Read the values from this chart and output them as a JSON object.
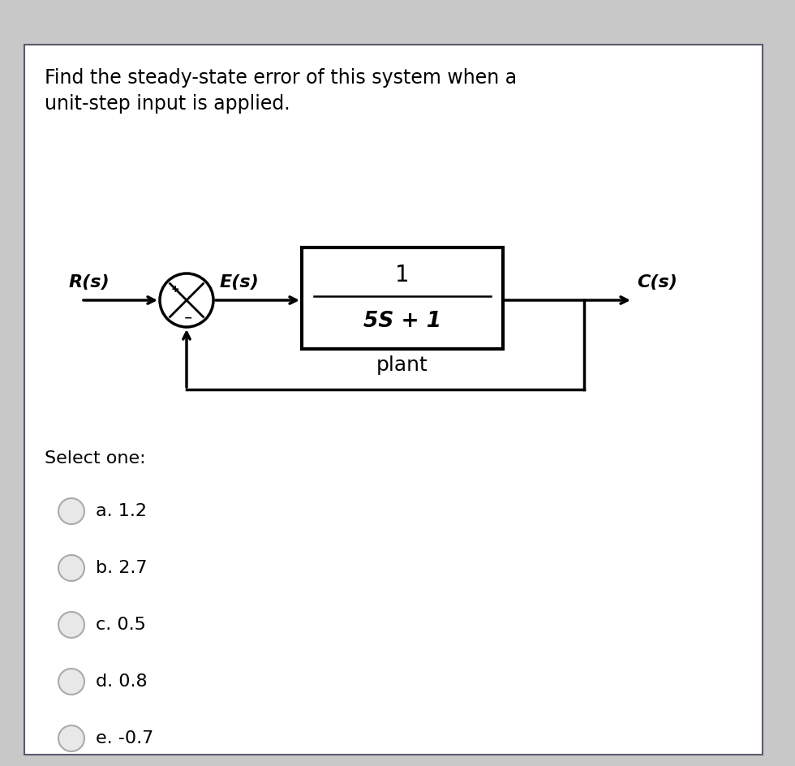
{
  "title_line1": "Find the steady-state error of this system when a",
  "title_line2": "unit-step input is applied.",
  "bg_color": "#ffffff",
  "outer_bg": "#d0d0d0",
  "card_border": "#5a5a6e",
  "text_color": "#000000",
  "select_one_text": "Select one:",
  "options": [
    {
      "label": "a. 1.2"
    },
    {
      "label": "b. 2.7"
    },
    {
      "label": "c. 0.5"
    },
    {
      "label": "d. 0.8"
    },
    {
      "label": "e. -0.7"
    }
  ],
  "R_label": "R(s)",
  "E_label": "E(s)",
  "C_label": "C(s)",
  "tf_numerator": "1",
  "tf_denominator": "5S + 1",
  "tf_label": "plant",
  "circle_color": "#000000",
  "box_color": "#000000",
  "arrow_color": "#000000",
  "radio_fill": "#e8e8e8",
  "radio_border": "#aaaaaa",
  "title_fontsize": 17,
  "diagram_fontsize": 16,
  "option_fontsize": 16,
  "select_fontsize": 16
}
